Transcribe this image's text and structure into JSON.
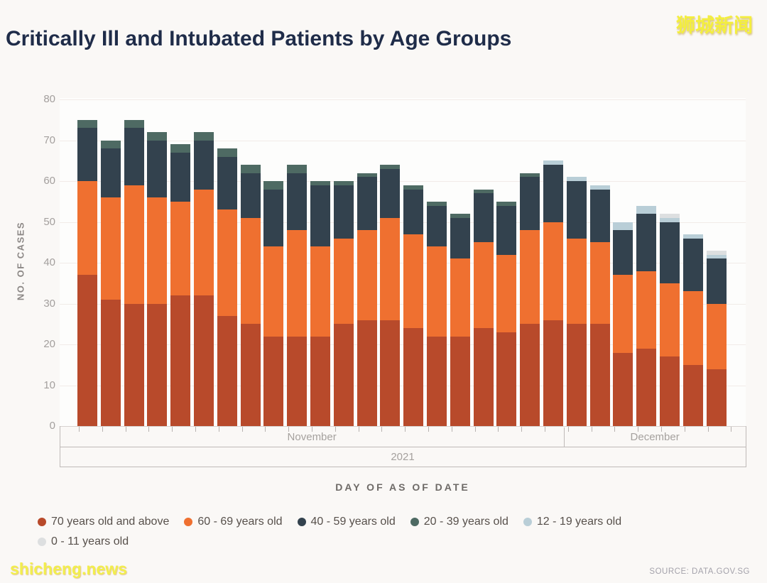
{
  "page": {
    "title": "Critically Ill and Intubated Patients by Age Groups",
    "watermark_top": "狮城新闻",
    "watermark_bottom": "shicheng.news",
    "source": "SOURCE: DATA.GOV.SG"
  },
  "chart_data": {
    "type": "bar",
    "stacked": true,
    "title": "Critically Ill and Intubated Patients by Age Groups",
    "xlabel": "DAY OF AS OF DATE",
    "ylabel": "NO. OF CASES",
    "ylim": [
      0,
      80
    ],
    "yticks": [
      0,
      10,
      20,
      30,
      40,
      50,
      60,
      70,
      80
    ],
    "grid": true,
    "legend_position": "bottom-left",
    "year_label": "2021",
    "months": [
      {
        "label": "November",
        "bar_count": 21
      },
      {
        "label": "December",
        "bar_count": 7
      }
    ],
    "series": [
      {
        "name": "70 years old and above",
        "color": "#b84a2b"
      },
      {
        "name": "60 - 69 years old",
        "color": "#ef7030"
      },
      {
        "name": "40 - 59 years old",
        "color": "#33424e"
      },
      {
        "name": "20 - 39 years old",
        "color": "#4e6a63"
      },
      {
        "name": "12 - 19 years old",
        "color": "#b9ced7"
      },
      {
        "name": "0 - 11 years old",
        "color": "#dddfe0"
      }
    ],
    "bars": [
      [
        37,
        23,
        13,
        2,
        0,
        0
      ],
      [
        31,
        25,
        12,
        2,
        0,
        0
      ],
      [
        30,
        29,
        14,
        2,
        0,
        0
      ],
      [
        30,
        26,
        14,
        2,
        0,
        0
      ],
      [
        32,
        23,
        12,
        2,
        0,
        0
      ],
      [
        32,
        26,
        12,
        2,
        0,
        0
      ],
      [
        27,
        26,
        13,
        2,
        0,
        0
      ],
      [
        25,
        26,
        11,
        2,
        0,
        0
      ],
      [
        22,
        22,
        14,
        2,
        0,
        0
      ],
      [
        22,
        26,
        14,
        2,
        0,
        0
      ],
      [
        22,
        22,
        15,
        1,
        0,
        0
      ],
      [
        25,
        21,
        13,
        1,
        0,
        0
      ],
      [
        26,
        22,
        13,
        1,
        0,
        0
      ],
      [
        26,
        25,
        12,
        1,
        0,
        0
      ],
      [
        24,
        23,
        11,
        1,
        0,
        0
      ],
      [
        22,
        22,
        10,
        1,
        0,
        0
      ],
      [
        22,
        19,
        10,
        1,
        0,
        0
      ],
      [
        24,
        21,
        12,
        1,
        0,
        0
      ],
      [
        23,
        19,
        12,
        1,
        0,
        0
      ],
      [
        25,
        23,
        13,
        1,
        0,
        0
      ],
      [
        26,
        24,
        14,
        0,
        1,
        0
      ],
      [
        25,
        21,
        14,
        0,
        1,
        0
      ],
      [
        25,
        20,
        13,
        0,
        1,
        0
      ],
      [
        18,
        19,
        11,
        0,
        2,
        0
      ],
      [
        19,
        19,
        14,
        0,
        2,
        0
      ],
      [
        17,
        18,
        15,
        0,
        1,
        1
      ],
      [
        15,
        18,
        13,
        0,
        1,
        0
      ],
      [
        14,
        16,
        11,
        0,
        1,
        1
      ]
    ],
    "totals": [
      75,
      70,
      75,
      72,
      69,
      72,
      68,
      64,
      60,
      64,
      60,
      60,
      62,
      64,
      59,
      55,
      52,
      58,
      55,
      62,
      65,
      61,
      59,
      50,
      54,
      52,
      47,
      43
    ]
  }
}
